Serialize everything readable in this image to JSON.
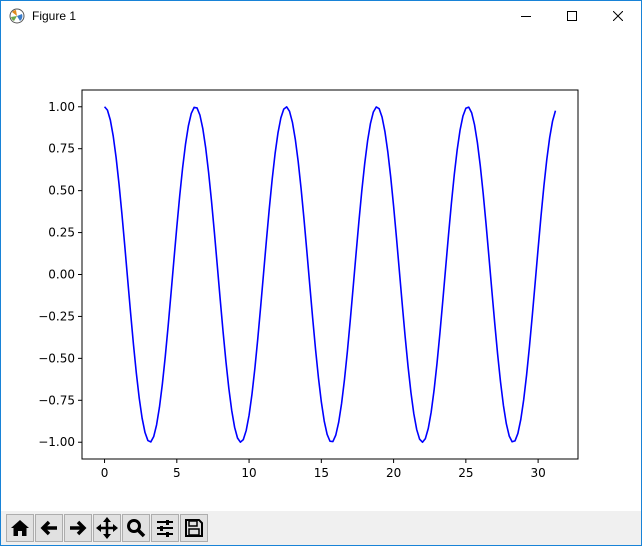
{
  "window": {
    "title": "Figure 1",
    "icon": "matplotlib-icon",
    "controls": [
      "minimize-icon",
      "maximize-icon",
      "close-icon"
    ]
  },
  "toolbar": {
    "buttons": [
      {
        "name": "home",
        "icon": "home-icon"
      },
      {
        "name": "back",
        "icon": "arrow-left-icon"
      },
      {
        "name": "forward",
        "icon": "arrow-right-icon"
      },
      {
        "name": "pan",
        "icon": "move-icon"
      },
      {
        "name": "zoom",
        "icon": "magnifier-icon"
      },
      {
        "name": "configure-subplots",
        "icon": "sliders-icon"
      },
      {
        "name": "save",
        "icon": "floppy-disk-icon"
      }
    ]
  },
  "chart_data": {
    "type": "line",
    "title": "",
    "xlabel": "",
    "ylabel": "",
    "xlim": [
      -1.56,
      32.76
    ],
    "ylim": [
      -1.1,
      1.1
    ],
    "xticks": [
      "0",
      "5",
      "10",
      "15",
      "20",
      "25",
      "30"
    ],
    "yticks": [
      "1.00",
      "0.75",
      "0.50",
      "0.25",
      "0.00",
      "−0.25",
      "−0.50",
      "−0.75",
      "−1.00"
    ],
    "grid": false,
    "series": [
      {
        "function": "cos(x)",
        "x_start": 0,
        "x_end": 31.2,
        "x_step": 0.2,
        "color": "#0000ff"
      }
    ]
  }
}
